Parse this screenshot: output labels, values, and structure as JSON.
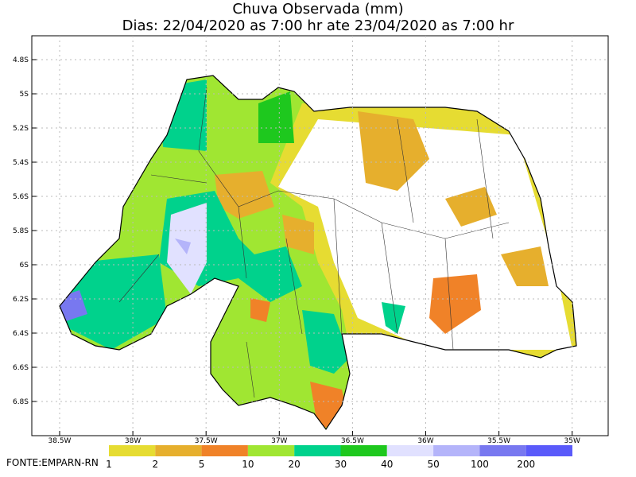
{
  "title": "Chuva Observada (mm)",
  "subtitle": "Dias: 22/04/2020 as 7:00 hr ate 23/04/2020 as 7:00 hr",
  "y_axis": {
    "labels": [
      "4.8S",
      "5S",
      "5.2S",
      "5.4S",
      "5.6S",
      "5.8S",
      "6S",
      "6.2S",
      "6.4S",
      "6.6S",
      "6.8S"
    ]
  },
  "x_axis": {
    "labels": [
      "38.5W",
      "38W",
      "37.5W",
      "37W",
      "36.5W",
      "36W",
      "35.5W",
      "35W"
    ]
  },
  "legend": {
    "items": [
      {
        "label": "1",
        "color": "#e6dc32"
      },
      {
        "label": "2",
        "color": "#e6af2d"
      },
      {
        "label": "5",
        "color": "#f08228"
      },
      {
        "label": "10",
        "color": "#a0e632"
      },
      {
        "label": "20",
        "color": "#00d28c"
      },
      {
        "label": "30",
        "color": "#1ec81e"
      },
      {
        "label": "40",
        "color": "#e1e1ff"
      },
      {
        "label": "50",
        "color": "#b4b4fa"
      },
      {
        "label": "100",
        "color": "#7878f0"
      },
      {
        "label": "200",
        "color": "#5a5afa"
      }
    ]
  },
  "source": "FONTE:EMPARN-RN"
}
